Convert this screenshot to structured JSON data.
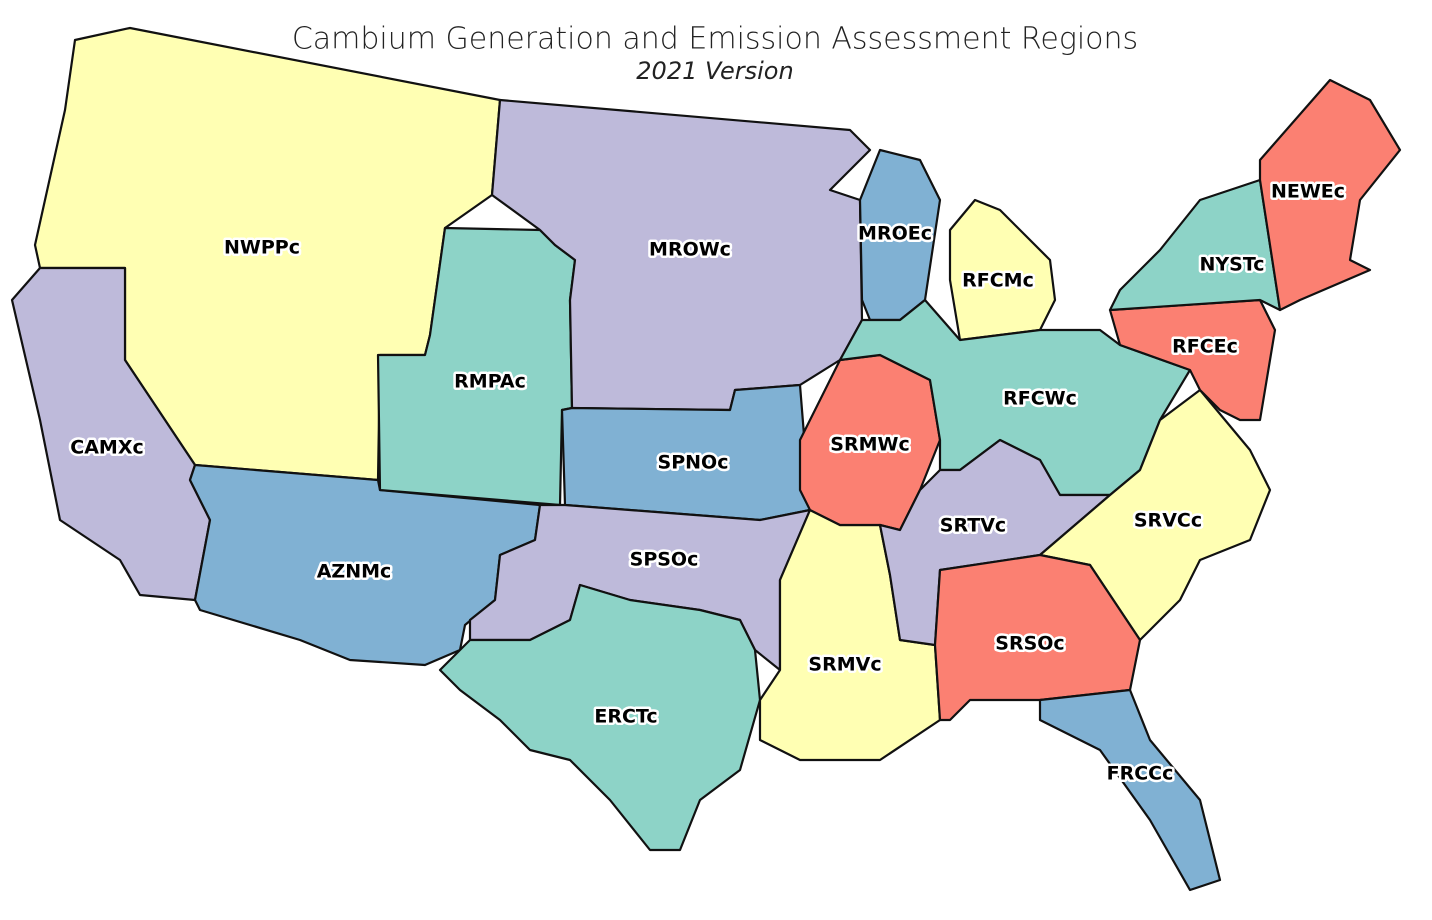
{
  "header": {
    "title": "Cambium Generation and Emission Assessment Regions",
    "subtitle": "2021 Version"
  },
  "regions": [
    {
      "label": "NWPPc",
      "color": "#ffffb3"
    },
    {
      "label": "CAMXc",
      "color": "#bebada"
    },
    {
      "label": "AZNMc",
      "color": "#80b1d3"
    },
    {
      "label": "RMPAc",
      "color": "#8dd3c7"
    },
    {
      "label": "MROWc",
      "color": "#bebada"
    },
    {
      "label": "SPNOc",
      "color": "#80b1d3"
    },
    {
      "label": "SPSOc",
      "color": "#bebada"
    },
    {
      "label": "ERCTc",
      "color": "#8dd3c7"
    },
    {
      "label": "SRMVc",
      "color": "#ffffb3"
    },
    {
      "label": "SRMWc",
      "color": "#fb8072"
    },
    {
      "label": "MROEc",
      "color": "#80b1d3"
    },
    {
      "label": "RFCMc",
      "color": "#ffffb3"
    },
    {
      "label": "RFCWc",
      "color": "#8dd3c7"
    },
    {
      "label": "SRTVc",
      "color": "#bebada"
    },
    {
      "label": "SRVCc",
      "color": "#ffffb3"
    },
    {
      "label": "SRSOc",
      "color": "#fb8072"
    },
    {
      "label": "FRCCc",
      "color": "#80b1d3"
    },
    {
      "label": "RFCEc",
      "color": "#fb8072"
    },
    {
      "label": "NYSTc",
      "color": "#8dd3c7"
    },
    {
      "label": "NEWEc",
      "color": "#fb8072"
    }
  ]
}
